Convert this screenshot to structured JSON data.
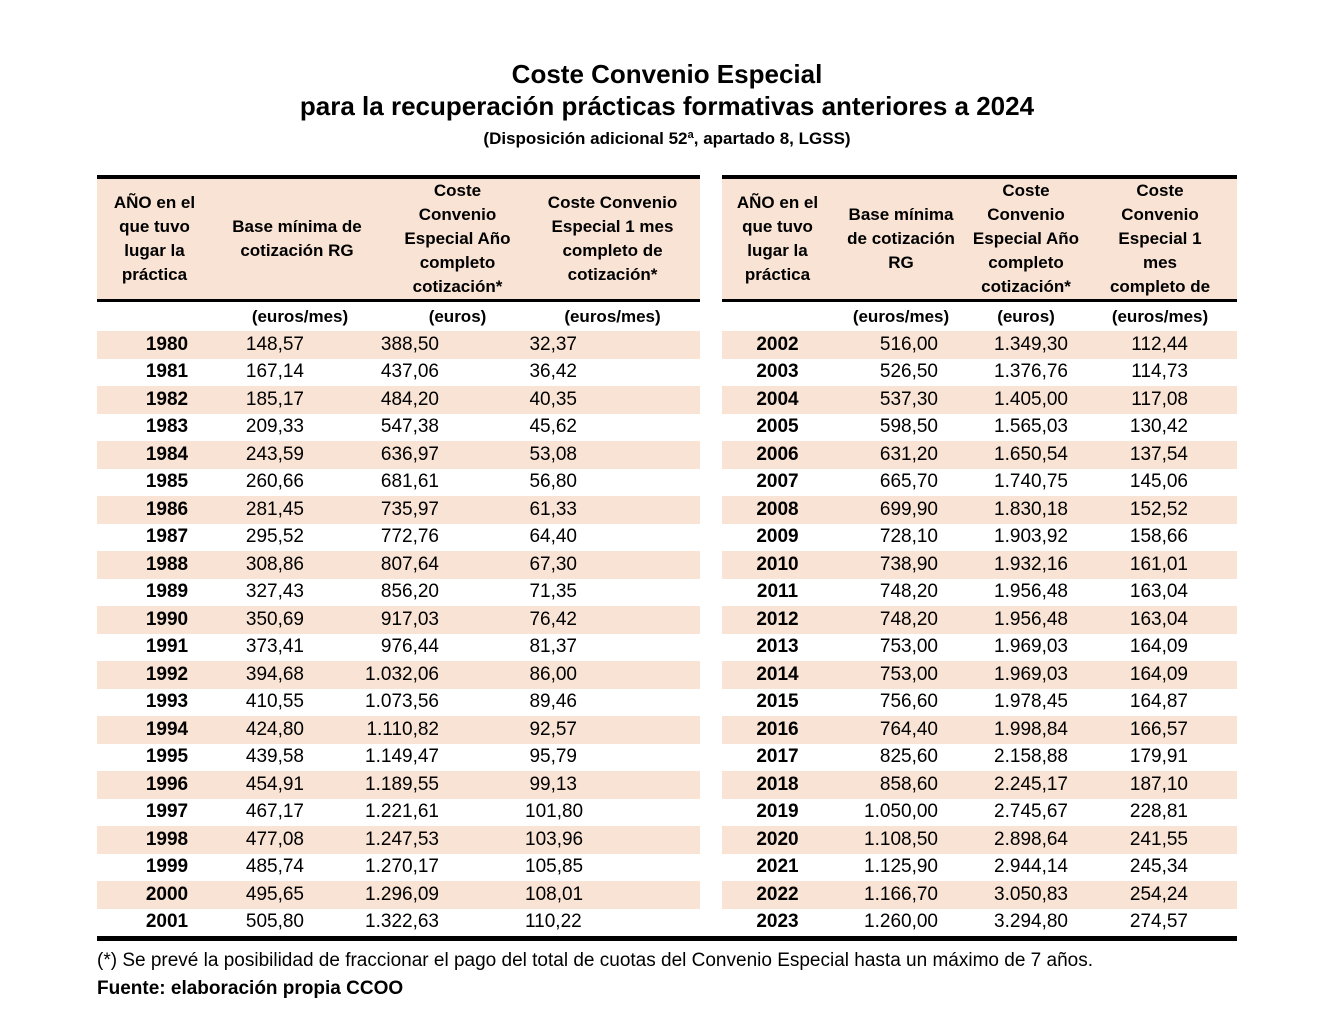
{
  "colors": {
    "row_peach": "#f8e3d4",
    "border": "#000000"
  },
  "title": {
    "line1": "Coste Convenio Especial",
    "line2": "para la recuperación prácticas formativas anteriores a 2024",
    "subtitle": "(Disposición adicional 52ª, apartado 8, LGSS)"
  },
  "tables": [
    {
      "name": "years-1980-2001",
      "headers": [
        "AÑO en el\nque tuvo\nlugar la\npráctica",
        "Base mínima de\ncotización RG",
        "Coste\nConvenio\nEspecial Año\ncompleto\ncotización*",
        "Coste Convenio\nEspecial 1 mes\ncompleto de\ncotización*"
      ],
      "units": [
        "",
        "(euros/mes)",
        "(euros)",
        "(euros/mes)"
      ],
      "rows": [
        [
          "1980",
          "148,57",
          "388,50",
          "32,37"
        ],
        [
          "1981",
          "167,14",
          "437,06",
          "36,42"
        ],
        [
          "1982",
          "185,17",
          "484,20",
          "40,35"
        ],
        [
          "1983",
          "209,33",
          "547,38",
          "45,62"
        ],
        [
          "1984",
          "243,59",
          "636,97",
          "53,08"
        ],
        [
          "1985",
          "260,66",
          "681,61",
          "56,80"
        ],
        [
          "1986",
          "281,45",
          "735,97",
          "61,33"
        ],
        [
          "1987",
          "295,52",
          "772,76",
          "64,40"
        ],
        [
          "1988",
          "308,86",
          "807,64",
          "67,30"
        ],
        [
          "1989",
          "327,43",
          "856,20",
          "71,35"
        ],
        [
          "1990",
          "350,69",
          "917,03",
          "76,42"
        ],
        [
          "1991",
          "373,41",
          "976,44",
          "81,37"
        ],
        [
          "1992",
          "394,68",
          "1.032,06",
          "86,00"
        ],
        [
          "1993",
          "410,55",
          "1.073,56",
          "89,46"
        ],
        [
          "1994",
          "424,80",
          "1.110,82",
          "92,57"
        ],
        [
          "1995",
          "439,58",
          "1.149,47",
          "95,79"
        ],
        [
          "1996",
          "454,91",
          "1.189,55",
          "99,13"
        ],
        [
          "1997",
          "467,17",
          "1.221,61",
          "101,80"
        ],
        [
          "1998",
          "477,08",
          "1.247,53",
          "103,96"
        ],
        [
          "1999",
          "485,74",
          "1.270,17",
          "105,85"
        ],
        [
          "2000",
          "495,65",
          "1.296,09",
          "108,01"
        ],
        [
          "2001",
          "505,80",
          "1.322,63",
          "110,22"
        ]
      ]
    },
    {
      "name": "years-2002-2023",
      "headers": [
        "AÑO en el\nque tuvo\nlugar la\npráctica",
        "Base mínima\nde cotización\nRG",
        "Coste\nConvenio\nEspecial Año\ncompleto\ncotización*",
        "Coste\nConvenio\nEspecial 1\nmes\ncompleto de"
      ],
      "units": [
        "",
        "(euros/mes)",
        "(euros)",
        "(euros/mes)"
      ],
      "rows": [
        [
          "2002",
          "516,00",
          "1.349,30",
          "112,44"
        ],
        [
          "2003",
          "526,50",
          "1.376,76",
          "114,73"
        ],
        [
          "2004",
          "537,30",
          "1.405,00",
          "117,08"
        ],
        [
          "2005",
          "598,50",
          "1.565,03",
          "130,42"
        ],
        [
          "2006",
          "631,20",
          "1.650,54",
          "137,54"
        ],
        [
          "2007",
          "665,70",
          "1.740,75",
          "145,06"
        ],
        [
          "2008",
          "699,90",
          "1.830,18",
          "152,52"
        ],
        [
          "2009",
          "728,10",
          "1.903,92",
          "158,66"
        ],
        [
          "2010",
          "738,90",
          "1.932,16",
          "161,01"
        ],
        [
          "2011",
          "748,20",
          "1.956,48",
          "163,04"
        ],
        [
          "2012",
          "748,20",
          "1.956,48",
          "163,04"
        ],
        [
          "2013",
          "753,00",
          "1.969,03",
          "164,09"
        ],
        [
          "2014",
          "753,00",
          "1.969,03",
          "164,09"
        ],
        [
          "2015",
          "756,60",
          "1.978,45",
          "164,87"
        ],
        [
          "2016",
          "764,40",
          "1.998,84",
          "166,57"
        ],
        [
          "2017",
          "825,60",
          "2.158,88",
          "179,91"
        ],
        [
          "2018",
          "858,60",
          "2.245,17",
          "187,10"
        ],
        [
          "2019",
          "1.050,00",
          "2.745,67",
          "228,81"
        ],
        [
          "2020",
          "1.108,50",
          "2.898,64",
          "241,55"
        ],
        [
          "2021",
          "1.125,90",
          "2.944,14",
          "245,34"
        ],
        [
          "2022",
          "1.166,70",
          "3.050,83",
          "254,24"
        ],
        [
          "2023",
          "1.260,00",
          "3.294,80",
          "274,57"
        ]
      ]
    }
  ],
  "footnote": "(*) Se prevé la posibilidad de fraccionar el pago del total de cuotas del Convenio Especial hasta un máximo de 7 años.",
  "source": "Fuente: elaboración propia CCOO"
}
